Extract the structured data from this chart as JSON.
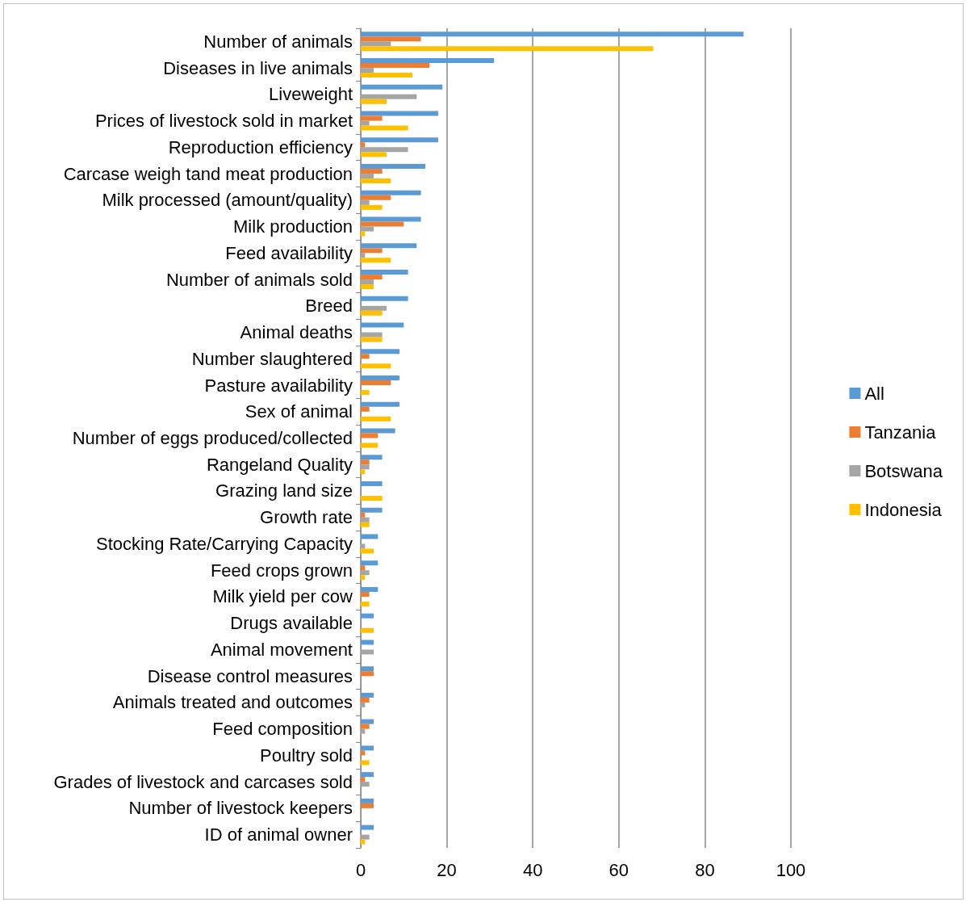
{
  "chart_data": {
    "type": "bar",
    "orientation": "horizontal",
    "categories": [
      "Number of animals",
      "Diseases in live animals",
      "Liveweight",
      "Prices of livestock sold in market",
      "Reproduction efficiency",
      "Carcase weigh tand meat production",
      "Milk processed (amount/quality)",
      "Milk production",
      "Feed availability",
      "Number of animals sold",
      "Breed",
      "Animal deaths",
      "Number slaughtered",
      "Pasture availability",
      "Sex of animal",
      "Number of eggs produced/collected",
      "Rangeland Quality",
      "Grazing land size",
      "Growth rate",
      "Stocking Rate/Carrying Capacity",
      "Feed crops grown",
      "Milk yield per cow",
      "Drugs available",
      "Animal movement",
      "Disease control measures",
      "Animals treated and outcomes",
      "Feed composition",
      "Poultry sold",
      "Grades of livestock and carcases sold",
      "Number of livestock keepers",
      "ID of animal owner"
    ],
    "series": [
      {
        "name": "All",
        "color": "#5b9bd5",
        "values": [
          89,
          31,
          19,
          18,
          18,
          15,
          14,
          14,
          13,
          11,
          11,
          10,
          9,
          9,
          9,
          8,
          5,
          5,
          5,
          4,
          4,
          4,
          3,
          3,
          3,
          3,
          3,
          3,
          3,
          3,
          3
        ]
      },
      {
        "name": "Tanzania",
        "color": "#ed7d31",
        "values": [
          14,
          16,
          0,
          5,
          1,
          5,
          7,
          10,
          5,
          5,
          0,
          0,
          2,
          7,
          2,
          4,
          2,
          0,
          1,
          0,
          1,
          2,
          0,
          0,
          3,
          2,
          2,
          1,
          1,
          3,
          0
        ]
      },
      {
        "name": "Botswana",
        "color": "#a5a5a5",
        "values": [
          7,
          3,
          13,
          2,
          11,
          3,
          2,
          3,
          1,
          3,
          6,
          5,
          0,
          0,
          0,
          0,
          2,
          0,
          2,
          1,
          2,
          0,
          0,
          3,
          0,
          1,
          1,
          0,
          2,
          0,
          2
        ]
      },
      {
        "name": "Indonesia",
        "color": "#ffc000",
        "values": [
          68,
          12,
          6,
          11,
          6,
          7,
          5,
          1,
          7,
          3,
          5,
          5,
          7,
          2,
          7,
          4,
          1,
          5,
          2,
          3,
          1,
          2,
          3,
          0,
          0,
          0,
          0,
          2,
          0,
          0,
          1
        ]
      }
    ],
    "xlim": [
      0,
      100
    ],
    "xticks": [
      0,
      20,
      40,
      60,
      80,
      100
    ],
    "grid": "x",
    "legend": "right"
  }
}
